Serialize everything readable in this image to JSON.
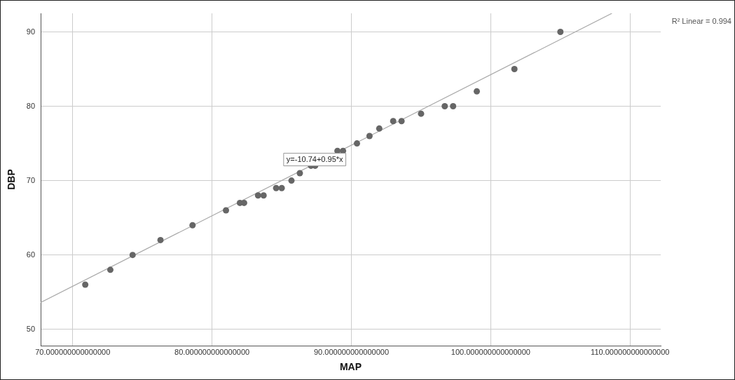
{
  "chart_data": {
    "type": "scatter",
    "xlabel": "MAP",
    "ylabel": "DBP",
    "xlim": [
      67.7,
      112.2
    ],
    "ylim": [
      47.8,
      92.5
    ],
    "xticks": [
      {
        "value": 70,
        "label": "70.000000000000000"
      },
      {
        "value": 80,
        "label": "80.000000000000000"
      },
      {
        "value": 90,
        "label": "90.000000000000000"
      },
      {
        "value": 100,
        "label": "100.000000000000000"
      },
      {
        "value": 110,
        "label": "110.000000000000000"
      }
    ],
    "yticks": [
      50,
      60,
      70,
      80,
      90
    ],
    "grid": true,
    "legend": false,
    "marker": "circle",
    "series": [
      {
        "color": "#666666",
        "x": [
          70.9,
          72.7,
          74.3,
          76.3,
          78.6,
          81.0,
          82.0,
          82.3,
          83.3,
          83.7,
          84.6,
          85.0,
          85.7,
          86.3,
          87.1,
          87.4,
          89.0,
          89.4,
          90.4,
          91.3,
          92.0,
          93.0,
          93.6,
          95.0,
          96.7,
          97.3,
          99.0,
          101.7,
          105.0
        ],
        "values": [
          56,
          58,
          60,
          62,
          64,
          66,
          67,
          67,
          68,
          68,
          69,
          69,
          70,
          71,
          72,
          72,
          74,
          74,
          75,
          76,
          77,
          78,
          78,
          79,
          80,
          80,
          82,
          85,
          90
        ]
      },
      {
        "type": "line",
        "color": "#aaaaaa",
        "marker": "none",
        "x": [
          67.7,
          108.7
        ],
        "values": [
          53.6,
          92.5
        ]
      }
    ],
    "annotations": [
      "y=-10.74+0.95*x",
      "R² Linear = 0.994"
    ]
  }
}
